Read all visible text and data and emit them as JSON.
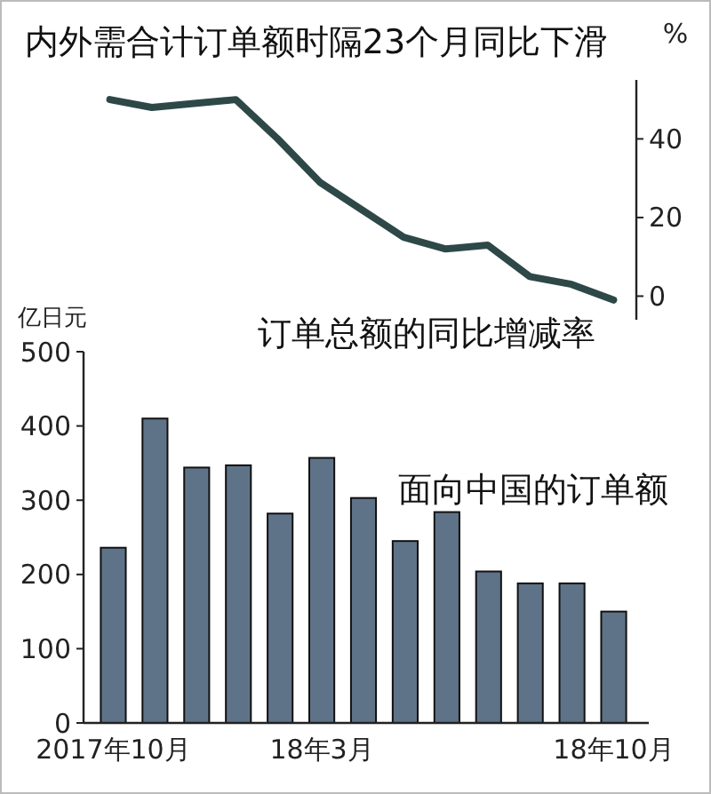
{
  "chart_data": [
    {
      "type": "line",
      "title": "内外需合计订单额时隔23个月同比下滑",
      "ylabel": "%",
      "annotations": [
        "订单总额的同比增减率"
      ],
      "categories": [
        null,
        null,
        null,
        null,
        null,
        null,
        null,
        null,
        null,
        null,
        null,
        null,
        null
      ],
      "series": [
        {
          "color": "#2e4848",
          "values": [
            50,
            48,
            49,
            50,
            40,
            29,
            22,
            15,
            12,
            13,
            5,
            3,
            -1
          ]
        }
      ],
      "ylim": [
        -6,
        55
      ],
      "yticks": [
        0,
        20,
        40
      ],
      "tick_labels": "y",
      "grid": false
    },
    {
      "type": "bar",
      "ylabel": "亿日元",
      "annotations": [
        "面向中国的订单额"
      ],
      "categories": [
        "2017年10月",
        null,
        null,
        null,
        null,
        "18年3月",
        null,
        null,
        null,
        null,
        null,
        null,
        "18年10月"
      ],
      "series": [
        {
          "color": "#5f7388",
          "values": [
            236,
            410,
            344,
            347,
            282,
            357,
            303,
            245,
            284,
            204,
            188,
            188,
            150
          ]
        }
      ],
      "ylim": [
        0,
        500
      ],
      "yticks": [
        0,
        100,
        200,
        300,
        400,
        500
      ],
      "grid": false
    }
  ]
}
